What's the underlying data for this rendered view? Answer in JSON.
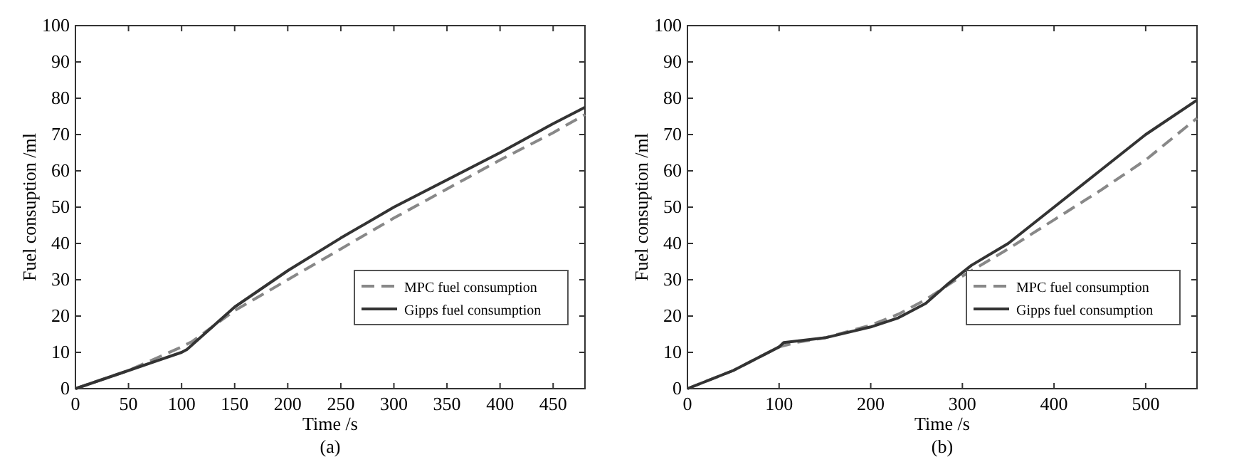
{
  "chart_data": [
    {
      "type": "line",
      "xlabel": "Time /s",
      "ylabel": "Fuel consuption /ml",
      "annotations": [
        "(a)"
      ],
      "xlim": [
        0,
        480
      ],
      "ylim": [
        0,
        100
      ],
      "xticks": [
        0,
        50,
        100,
        150,
        200,
        250,
        300,
        350,
        400,
        450
      ],
      "yticks": [
        0,
        10,
        20,
        30,
        40,
        50,
        60,
        70,
        80,
        90,
        100
      ],
      "legend": "bottom right",
      "grid": false,
      "marker": "none",
      "series": [
        {
          "name": "MPC fuel consumption",
          "color": "#888888",
          "line_style": "dashed",
          "x": [
            0,
            50,
            100,
            110,
            150,
            200,
            250,
            300,
            350,
            400,
            450,
            480
          ],
          "values": [
            0,
            5,
            11.5,
            13,
            21.5,
            30,
            38.5,
            47,
            55,
            63,
            70.5,
            75.5
          ]
        },
        {
          "name": "Gipps fuel consumption",
          "color": "#333333",
          "line_style": "solid",
          "x": [
            0,
            50,
            100,
            105,
            125,
            150,
            200,
            250,
            300,
            350,
            400,
            450,
            480
          ],
          "values": [
            0,
            5,
            10,
            10.8,
            16,
            22.5,
            32.5,
            41.5,
            50,
            57.5,
            65,
            73,
            77.5
          ]
        }
      ]
    },
    {
      "type": "line",
      "xlabel": "Time /s",
      "ylabel": "Fuel consuption /ml",
      "annotations": [
        "(b)"
      ],
      "xlim": [
        0,
        556
      ],
      "ylim": [
        0,
        100
      ],
      "xticks": [
        0,
        100,
        200,
        300,
        400,
        500
      ],
      "yticks": [
        0,
        10,
        20,
        30,
        40,
        50,
        60,
        70,
        80,
        90,
        100
      ],
      "legend": "bottom right",
      "grid": false,
      "marker": "none",
      "series": [
        {
          "name": "MPC fuel consumption",
          "color": "#888888",
          "line_style": "dashed",
          "x": [
            0,
            50,
            100,
            120,
            150,
            200,
            230,
            260,
            290,
            310,
            350,
            400,
            450,
            500,
            556
          ],
          "values": [
            0,
            5,
            11.5,
            12.8,
            14,
            17.5,
            20.5,
            24.5,
            29.5,
            32.5,
            38.5,
            46.5,
            54.5,
            63,
            74.5
          ]
        },
        {
          "name": "Gipps fuel consumption",
          "color": "#333333",
          "line_style": "solid",
          "x": [
            0,
            50,
            100,
            105,
            150,
            200,
            230,
            260,
            285,
            310,
            350,
            400,
            450,
            500,
            556
          ],
          "values": [
            0,
            5,
            11.5,
            12.7,
            14,
            17,
            19.5,
            23.5,
            29,
            34,
            40,
            50,
            60,
            70,
            79.5
          ]
        }
      ]
    }
  ]
}
